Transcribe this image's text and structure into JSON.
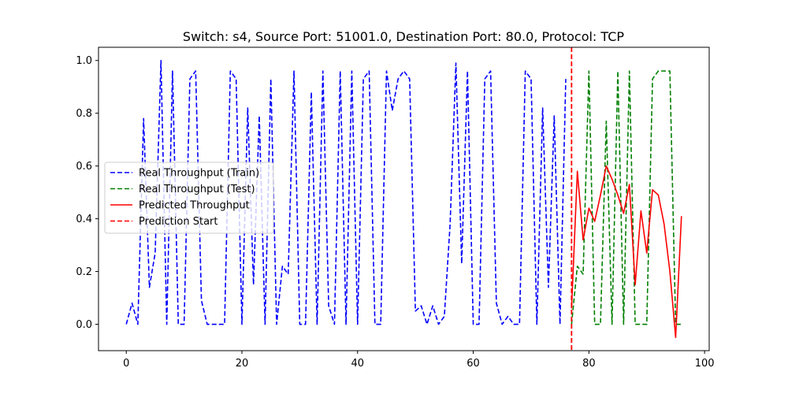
{
  "chart_data": {
    "type": "line",
    "title": "Switch: s4, Source Port: 51001.0, Destination Port: 80.0, Protocol: TCP",
    "xlabel": "",
    "ylabel": "",
    "xlim": [
      -4.8,
      100.8
    ],
    "ylim": [
      -0.1,
      1.05
    ],
    "x_ticks": [
      0,
      20,
      40,
      60,
      80,
      100
    ],
    "y_ticks": [
      0.0,
      0.2,
      0.4,
      0.6,
      0.8,
      1.0
    ],
    "x_tick_labels": [
      "0",
      "20",
      "40",
      "60",
      "80",
      "100"
    ],
    "y_tick_labels": [
      "0.0",
      "0.2",
      "0.4",
      "0.6",
      "0.8",
      "1.0"
    ],
    "grid": false,
    "legend_position": "center-left",
    "series": [
      {
        "name": "Real Throughput (Train)",
        "color": "#0000ff",
        "dash": "dashed",
        "x": [
          0,
          1,
          2,
          3,
          4,
          5,
          6,
          7,
          8,
          9,
          10,
          11,
          12,
          13,
          14,
          15,
          16,
          17,
          18,
          19,
          20,
          21,
          22,
          23,
          24,
          25,
          26,
          27,
          28,
          29,
          30,
          31,
          32,
          33,
          34,
          35,
          36,
          37,
          38,
          39,
          40,
          41,
          42,
          43,
          44,
          45,
          46,
          47,
          48,
          49,
          50,
          51,
          52,
          53,
          54,
          55,
          56,
          57,
          58,
          59,
          60,
          61,
          62,
          63,
          64,
          65,
          66,
          67,
          68,
          69,
          70,
          71,
          72,
          73,
          74,
          75,
          76
        ],
        "values": [
          0.0,
          0.08,
          0.0,
          0.78,
          0.14,
          0.27,
          1.0,
          0.0,
          0.96,
          0.0,
          0.0,
          0.93,
          0.96,
          0.09,
          0.0,
          0.0,
          0.0,
          0.0,
          0.96,
          0.93,
          0.0,
          0.82,
          0.15,
          0.79,
          0.0,
          0.93,
          0.0,
          0.22,
          0.19,
          0.96,
          0.0,
          0.0,
          0.88,
          0.0,
          0.96,
          0.07,
          0.0,
          0.96,
          0.0,
          0.96,
          0.0,
          0.93,
          0.96,
          0.0,
          0.0,
          0.96,
          0.81,
          0.93,
          0.96,
          0.93,
          0.05,
          0.07,
          0.0,
          0.07,
          0.0,
          0.03,
          0.38,
          0.99,
          0.23,
          0.96,
          0.0,
          0.0,
          0.93,
          0.96,
          0.08,
          0.0,
          0.03,
          0.0,
          0.0,
          0.96,
          0.93,
          0.0,
          0.82,
          0.14,
          0.79,
          0.0,
          0.93
        ]
      },
      {
        "name": "Real Throughput (Test)",
        "color": "#008000",
        "dash": "dashed",
        "x": [
          77,
          78,
          79,
          80,
          81,
          82,
          83,
          84,
          85,
          86,
          87,
          88,
          89,
          90,
          91,
          92,
          93,
          94,
          95,
          96
        ],
        "values": [
          0.0,
          0.22,
          0.19,
          0.96,
          0.0,
          0.0,
          0.77,
          0.0,
          0.96,
          0.0,
          0.96,
          0.0,
          0.0,
          0.0,
          0.93,
          0.96,
          0.96,
          0.96,
          0.0,
          0.0
        ]
      },
      {
        "name": "Predicted Throughput",
        "color": "#ff0000",
        "dash": "solid",
        "x": [
          77,
          78,
          79,
          80,
          81,
          82,
          83,
          84,
          85,
          86,
          87,
          88,
          89,
          90,
          91,
          92,
          93,
          94,
          95,
          96
        ],
        "values": [
          0.06,
          0.58,
          0.32,
          0.44,
          0.39,
          0.49,
          0.6,
          0.55,
          0.49,
          0.42,
          0.53,
          0.15,
          0.43,
          0.27,
          0.51,
          0.49,
          0.38,
          0.2,
          -0.05,
          0.41
        ]
      }
    ],
    "vertical_lines": [
      {
        "name": "Prediction Start",
        "x": 77,
        "color": "#ff0000",
        "dash": "dashed"
      }
    ]
  }
}
